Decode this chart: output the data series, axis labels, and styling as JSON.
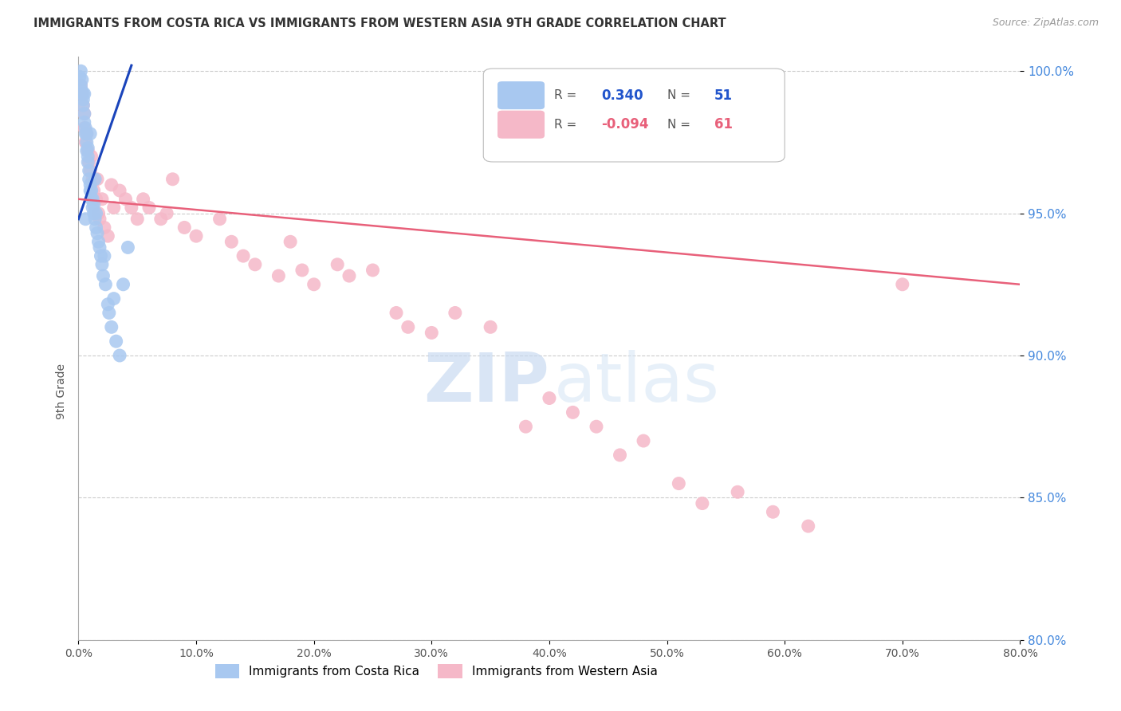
{
  "title": "IMMIGRANTS FROM COSTA RICA VS IMMIGRANTS FROM WESTERN ASIA 9TH GRADE CORRELATION CHART",
  "source": "Source: ZipAtlas.com",
  "ylabel": "9th Grade",
  "r_blue": 0.34,
  "n_blue": 51,
  "r_pink": -0.094,
  "n_pink": 61,
  "x_min": 0.0,
  "x_max": 80.0,
  "y_min": 80.0,
  "y_max": 100.5,
  "yticks": [
    80.0,
    85.0,
    90.0,
    95.0,
    100.0
  ],
  "xticks": [
    0.0,
    10.0,
    20.0,
    30.0,
    40.0,
    50.0,
    60.0,
    70.0,
    80.0
  ],
  "blue_color": "#A8C8F0",
  "pink_color": "#F5B8C8",
  "blue_line_color": "#1A44BB",
  "pink_line_color": "#E8607A",
  "watermark_zip": "ZIP",
  "watermark_atlas": "atlas",
  "legend_label_blue": "Immigrants from Costa Rica",
  "legend_label_pink": "Immigrants from Western Asia",
  "blue_scatter_x": [
    0.1,
    0.2,
    0.2,
    0.3,
    0.3,
    0.4,
    0.4,
    0.4,
    0.5,
    0.5,
    0.6,
    0.6,
    0.7,
    0.7,
    0.7,
    0.8,
    0.8,
    0.8,
    0.9,
    0.9,
    1.0,
    1.0,
    1.1,
    1.1,
    1.2,
    1.2,
    1.3,
    1.3,
    1.4,
    1.5,
    1.5,
    1.6,
    1.7,
    1.8,
    1.9,
    2.0,
    2.1,
    2.2,
    2.3,
    2.5,
    2.6,
    2.8,
    3.0,
    3.2,
    3.5,
    3.8,
    0.5,
    0.6,
    1.0,
    1.4,
    4.2
  ],
  "blue_scatter_y": [
    99.8,
    99.5,
    100.0,
    99.7,
    99.3,
    99.0,
    98.8,
    99.2,
    98.5,
    98.2,
    97.8,
    98.0,
    97.5,
    97.2,
    97.8,
    96.8,
    97.0,
    97.3,
    96.5,
    96.2,
    95.8,
    96.0,
    95.5,
    95.8,
    95.2,
    95.5,
    95.0,
    95.3,
    94.8,
    94.5,
    95.0,
    94.3,
    94.0,
    93.8,
    93.5,
    93.2,
    92.8,
    93.5,
    92.5,
    91.8,
    91.5,
    91.0,
    92.0,
    90.5,
    90.0,
    92.5,
    99.2,
    94.8,
    97.8,
    96.2,
    93.8
  ],
  "pink_scatter_x": [
    0.2,
    0.3,
    0.4,
    0.5,
    0.5,
    0.6,
    0.7,
    0.8,
    0.9,
    1.0,
    1.1,
    1.2,
    1.3,
    1.5,
    1.6,
    1.7,
    1.8,
    2.0,
    2.2,
    2.5,
    2.8,
    3.0,
    3.5,
    4.0,
    4.5,
    5.0,
    5.5,
    6.0,
    7.0,
    7.5,
    8.0,
    9.0,
    10.0,
    12.0,
    13.0,
    14.0,
    15.0,
    17.0,
    18.0,
    19.0,
    20.0,
    22.0,
    23.0,
    25.0,
    27.0,
    28.0,
    30.0,
    32.0,
    35.0,
    38.0,
    40.0,
    42.0,
    44.0,
    46.0,
    48.0,
    51.0,
    53.0,
    56.0,
    59.0,
    62.0,
    70.0
  ],
  "pink_scatter_y": [
    99.5,
    99.2,
    98.8,
    98.5,
    98.0,
    97.5,
    97.8,
    97.2,
    96.8,
    96.5,
    97.0,
    96.2,
    95.8,
    95.5,
    96.2,
    95.0,
    94.8,
    95.5,
    94.5,
    94.2,
    96.0,
    95.2,
    95.8,
    95.5,
    95.2,
    94.8,
    95.5,
    95.2,
    94.8,
    95.0,
    96.2,
    94.5,
    94.2,
    94.8,
    94.0,
    93.5,
    93.2,
    92.8,
    94.0,
    93.0,
    92.5,
    93.2,
    92.8,
    93.0,
    91.5,
    91.0,
    90.8,
    91.5,
    91.0,
    87.5,
    88.5,
    88.0,
    87.5,
    86.5,
    87.0,
    85.5,
    84.8,
    85.2,
    84.5,
    84.0,
    92.5
  ],
  "blue_trend_x": [
    0.0,
    4.5
  ],
  "blue_trend_y": [
    94.8,
    100.2
  ],
  "pink_trend_x": [
    0.0,
    80.0
  ],
  "pink_trend_y": [
    95.5,
    92.5
  ]
}
